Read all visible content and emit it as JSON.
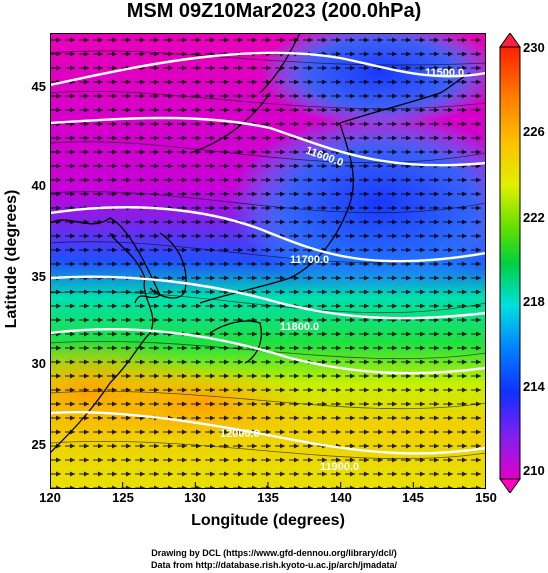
{
  "title": "MSM 09Z10Mar2023 (200.0hPa)",
  "xlabel": "Longitude (degrees)",
  "ylabel": "Latitude  (degrees)",
  "x_ticks": [
    "120",
    "125",
    "130",
    "135",
    "140",
    "145",
    "150"
  ],
  "y_ticks": [
    "45",
    "40",
    "35",
    "30",
    "25"
  ],
  "colorbar_ticks": [
    "230",
    "226",
    "222",
    "218",
    "214",
    "210"
  ],
  "contour_labels": [
    "11500.0",
    "11600.0",
    "11700.0",
    "11800.0",
    "11900.0",
    "12000.0"
  ],
  "credits": {
    "line1": "Drawing by DCL (https://www.gfd-dennou.org/library/dcl/)",
    "line2": "Data from http://database.rish.kyoto-u.ac.jp/arch/jmadata/"
  },
  "chart_data": {
    "type": "heatmap",
    "title": "MSM 09Z10Mar2023 (200.0hPa)",
    "xlabel": "Longitude (degrees)",
    "ylabel": "Latitude  (degrees)",
    "xlim": [
      120,
      150
    ],
    "ylim": [
      22.4,
      47.6
    ],
    "x_ticks": [
      120,
      125,
      130,
      135,
      140,
      145,
      150
    ],
    "y_ticks": [
      25,
      30,
      35,
      40,
      45
    ],
    "colorbar": {
      "range": [
        210,
        230
      ],
      "ticks": [
        210,
        214,
        218,
        222,
        226,
        230
      ],
      "colors": [
        "#e000c8",
        "#1030ff",
        "#00e0ff",
        "#00d000",
        "#f0f000",
        "#ff3000"
      ]
    },
    "contour_lines": [
      {
        "label": "11500.0",
        "lat_at_120": 44.8,
        "lat_at_150": 46.5
      },
      {
        "label": "11600.0",
        "lat_at_120": 42.3,
        "lat_at_150": 42.0
      },
      {
        "label": "11700.0",
        "lat_at_120": 39.0,
        "lat_at_150": 38.3
      },
      {
        "label": "11800.0",
        "lat_at_120": 35.5,
        "lat_at_150": 34.9
      },
      {
        "label": "11900.0",
        "lat_at_120": 32.3,
        "lat_at_150": 31.3
      },
      {
        "label": "12000.0",
        "lat_at_120": 28.0,
        "lat_at_150": 25.5
      }
    ],
    "wind": "westerly"
  }
}
